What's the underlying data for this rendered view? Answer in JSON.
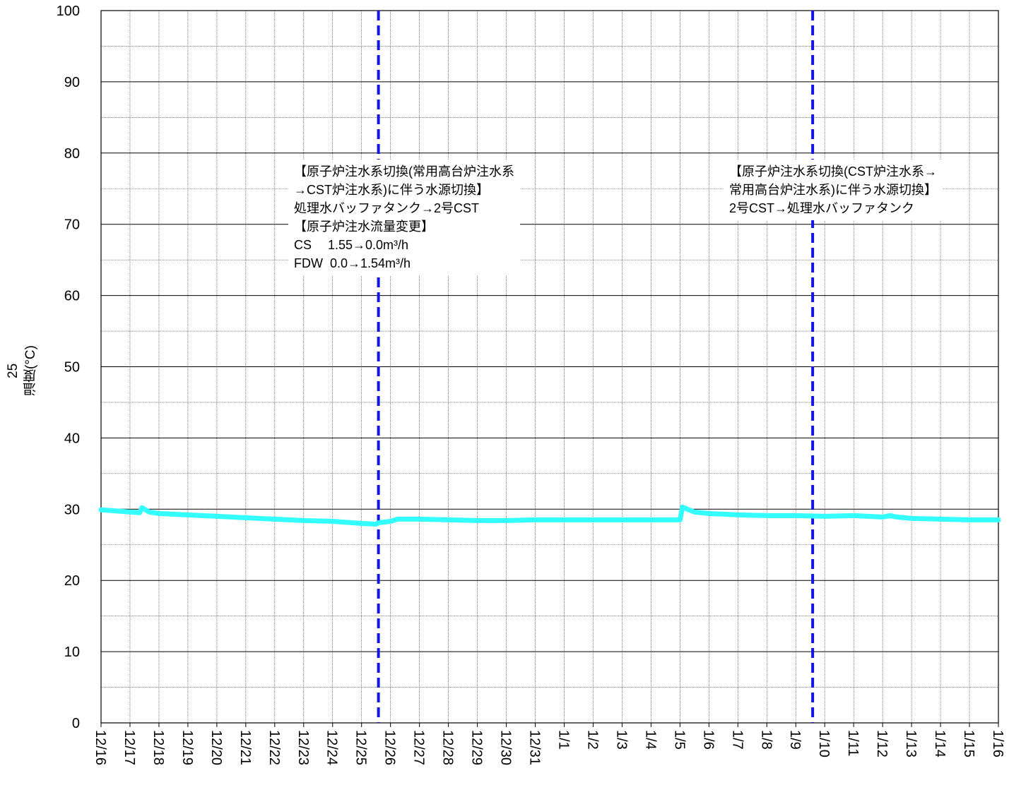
{
  "chart_data": {
    "type": "line",
    "ylabel_lines": [
      "25",
      "温度(°C)"
    ],
    "ylim": [
      0,
      100
    ],
    "y_ticks": [
      0,
      10,
      20,
      30,
      40,
      50,
      60,
      70,
      80,
      90,
      100
    ],
    "x_ticks": [
      "12/16",
      "12/17",
      "12/18",
      "12/19",
      "12/20",
      "12/21",
      "12/22",
      "12/23",
      "12/24",
      "12/25",
      "12/26",
      "12/27",
      "12/28",
      "12/29",
      "12/30",
      "12/31",
      "1/1",
      "1/2",
      "1/3",
      "1/4",
      "1/5",
      "1/6",
      "1/7",
      "1/8",
      "1/9",
      "1/10",
      "1/11",
      "1/12",
      "1/13",
      "1/14",
      "1/15",
      "1/16"
    ],
    "grid": true,
    "series": [
      {
        "color": "#33ffff",
        "points": [
          [
            "12/16 00:00",
            29.9
          ],
          [
            "12/17 00:00",
            29.6
          ],
          [
            "12/17 08:00",
            29.5
          ],
          [
            "12/17 10:00",
            30.2
          ],
          [
            "12/17 16:00",
            29.6
          ],
          [
            "12/18 00:00",
            29.4
          ],
          [
            "12/19 00:00",
            29.2
          ],
          [
            "12/20 00:00",
            29.0
          ],
          [
            "12/21 00:00",
            28.8
          ],
          [
            "12/22 00:00",
            28.6
          ],
          [
            "12/23 00:00",
            28.4
          ],
          [
            "12/24 00:00",
            28.3
          ],
          [
            "12/25 00:00",
            28.0
          ],
          [
            "12/25 12:00",
            27.9
          ],
          [
            "12/25 14:00",
            28.1
          ],
          [
            "12/26 00:00",
            28.3
          ],
          [
            "12/26 06:00",
            28.6
          ],
          [
            "12/27 00:00",
            28.6
          ],
          [
            "12/28 00:00",
            28.5
          ],
          [
            "12/29 00:00",
            28.4
          ],
          [
            "12/30 00:00",
            28.4
          ],
          [
            "12/31 00:00",
            28.5
          ],
          [
            "1/1 00:00",
            28.5
          ],
          [
            "1/2 00:00",
            28.5
          ],
          [
            "1/3 00:00",
            28.5
          ],
          [
            "1/4 00:00",
            28.5
          ],
          [
            "1/5 00:00",
            28.5
          ],
          [
            "1/5 02:00",
            30.3
          ],
          [
            "1/5 12:00",
            29.6
          ],
          [
            "1/6 00:00",
            29.4
          ],
          [
            "1/7 00:00",
            29.2
          ],
          [
            "1/8 00:00",
            29.1
          ],
          [
            "1/9 00:00",
            29.1
          ],
          [
            "1/10 00:00",
            29.0
          ],
          [
            "1/11 00:00",
            29.1
          ],
          [
            "1/12 00:00",
            28.9
          ],
          [
            "1/12 06:00",
            29.1
          ],
          [
            "1/12 12:00",
            28.9
          ],
          [
            "1/13 00:00",
            28.7
          ],
          [
            "1/14 00:00",
            28.6
          ],
          [
            "1/15 00:00",
            28.5
          ],
          [
            "1/16 00:00",
            28.5
          ]
        ]
      }
    ],
    "markers": [
      {
        "x": "12/25 14:00",
        "color": "#1515e0",
        "style": "dashed"
      },
      {
        "x": "1/9 14:00",
        "color": "#1515e0",
        "style": "dashed"
      }
    ],
    "annotations": [
      "【原子炉注水系切換(常用高台炉注水系\n→CST炉注水系)に伴う水源切換】\n処理水バッファタンク→2号CST\n【原子炉注水流量変更】\nCS　 1.55→0.0m³/h\nFDW  0.0→1.54m³/h",
      "【原子炉注水系切換(CST炉注水系→\n常用高台炉注水系)に伴う水源切換】\n2号CST→処理水バッファタンク"
    ]
  }
}
